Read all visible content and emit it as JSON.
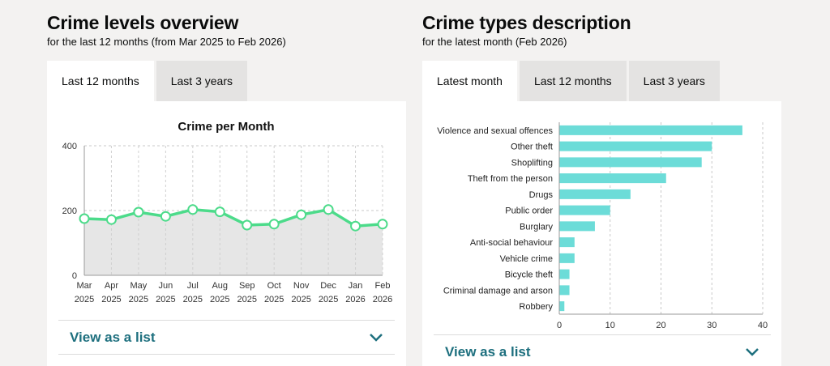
{
  "left": {
    "title": "Crime levels overview",
    "subtitle": "for the last 12 months (from Mar 2025 to Feb 2026)",
    "tabs": [
      {
        "label": "Last 12 months",
        "active": true
      },
      {
        "label": "Last 3 years",
        "active": false
      }
    ],
    "view_list_label": "View as a list"
  },
  "right": {
    "title": "Crime types description",
    "subtitle": "for the latest month (Feb 2026)",
    "tabs": [
      {
        "label": "Latest month",
        "active": true
      },
      {
        "label": "Last 12 months",
        "active": false
      },
      {
        "label": "Last 3 years",
        "active": false
      }
    ],
    "view_list_label": "View as a list"
  },
  "colors": {
    "line": "#4cdb8a",
    "area": "#e6e6e6",
    "bar": "#6cdcd8",
    "link": "#1d6f7e"
  },
  "chart_data": [
    {
      "type": "line",
      "title": "Crime per Month",
      "categories": [
        [
          "Mar",
          "2025"
        ],
        [
          "Apr",
          "2025"
        ],
        [
          "May",
          "2025"
        ],
        [
          "Jun",
          "2025"
        ],
        [
          "Jul",
          "2025"
        ],
        [
          "Aug",
          "2025"
        ],
        [
          "Sep",
          "2025"
        ],
        [
          "Oct",
          "2025"
        ],
        [
          "Nov",
          "2025"
        ],
        [
          "Dec",
          "2025"
        ],
        [
          "Jan",
          "2026"
        ],
        [
          "Feb",
          "2026"
        ]
      ],
      "values": [
        175,
        172,
        195,
        182,
        203,
        196,
        155,
        158,
        187,
        203,
        152,
        158
      ],
      "ylim": [
        0,
        400
      ],
      "yticks": [
        0,
        200,
        400
      ],
      "grid": true,
      "area_fill": true
    },
    {
      "type": "bar",
      "orientation": "horizontal",
      "categories": [
        "Violence and sexual offences",
        "Other theft",
        "Shoplifting",
        "Theft from the person",
        "Drugs",
        "Public order",
        "Burglary",
        "Anti-social behaviour",
        "Vehicle crime",
        "Bicycle theft",
        "Criminal damage and arson",
        "Robbery"
      ],
      "values": [
        36,
        30,
        28,
        21,
        14,
        10,
        7,
        3,
        3,
        2,
        2,
        1
      ],
      "xlim": [
        0,
        40
      ],
      "xticks": [
        0,
        10,
        20,
        30,
        40
      ],
      "grid": true
    }
  ]
}
